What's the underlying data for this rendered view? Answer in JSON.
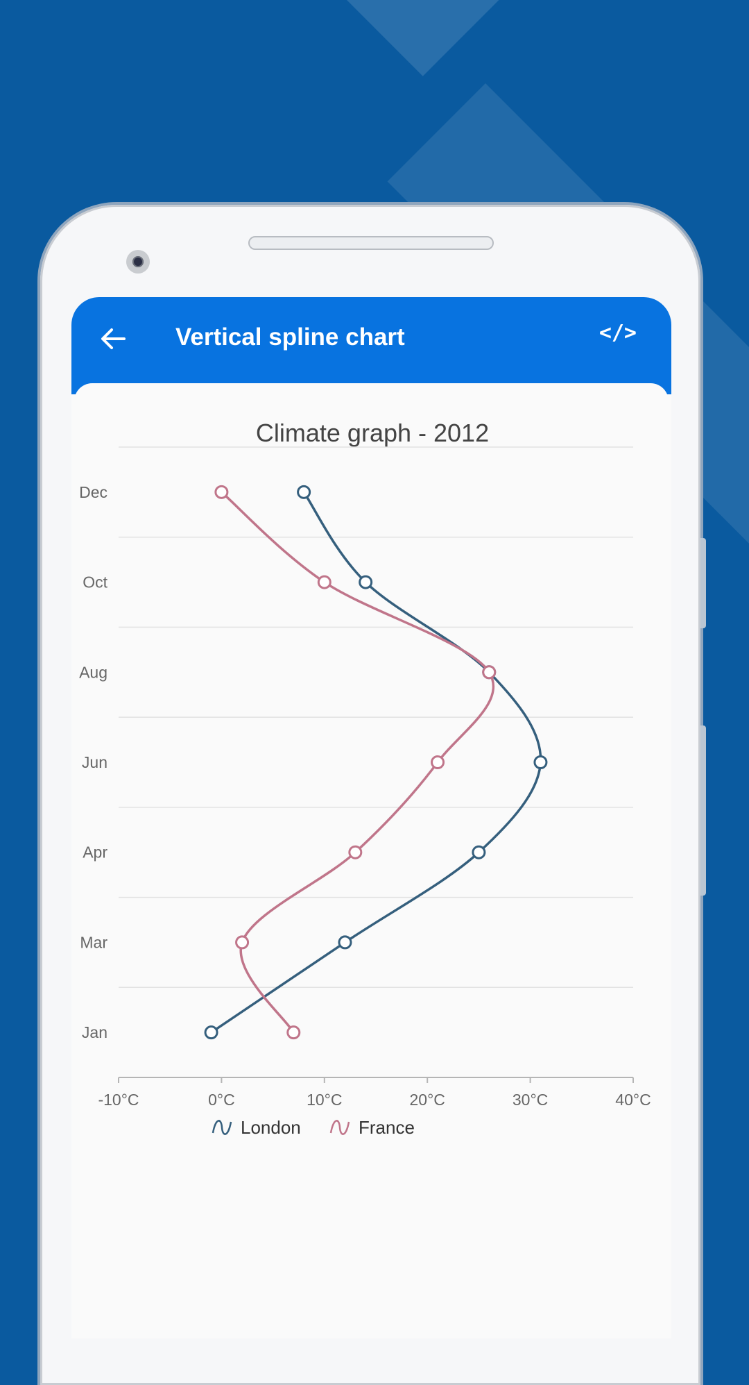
{
  "app_bar": {
    "title": "Vertical spline chart",
    "back_icon": "arrow-left-icon",
    "code_label": "</>"
  },
  "colors": {
    "background": "#0a5a9f",
    "app_bar": "#0873e0",
    "london": "#355f7d",
    "france": "#c0758a"
  },
  "chart_data": {
    "type": "line",
    "orientation": "vertical",
    "title": "Climate graph - 2012",
    "categories": [
      "Jan",
      "Mar",
      "Apr",
      "Jun",
      "Aug",
      "Oct",
      "Dec"
    ],
    "series": [
      {
        "name": "London",
        "values": [
          -1,
          12,
          25,
          31,
          26,
          14,
          8
        ]
      },
      {
        "name": "France",
        "values": [
          7,
          2,
          13,
          21,
          26,
          10,
          0
        ]
      }
    ],
    "x_axis": {
      "min": -10,
      "max": 40,
      "interval": 10,
      "tick_labels": [
        "-10°C",
        "0°C",
        "10°C",
        "20°C",
        "30°C",
        "40°C"
      ]
    },
    "grid": true,
    "legend": {
      "position": "bottom",
      "entries": [
        "London",
        "France"
      ]
    }
  }
}
